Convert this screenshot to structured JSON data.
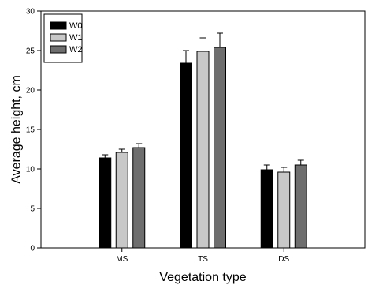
{
  "chart_data": {
    "type": "bar",
    "title": "",
    "xlabel": "Vegetation type",
    "ylabel": "Average height, cm",
    "categories": [
      "MS",
      "TS",
      "DS"
    ],
    "ylim": [
      0,
      30
    ],
    "yticks": [
      0,
      5,
      10,
      15,
      20,
      25,
      30
    ],
    "grid": false,
    "legend_position": "top-left",
    "series": [
      {
        "name": "W0",
        "color": "#000000",
        "values": [
          11.4,
          23.4,
          9.9
        ],
        "errors": [
          0.4,
          1.6,
          0.6
        ]
      },
      {
        "name": "W1",
        "color": "#c8c8c8",
        "values": [
          12.1,
          24.9,
          9.6
        ],
        "errors": [
          0.4,
          1.7,
          0.6
        ]
      },
      {
        "name": "W2",
        "color": "#6e6e6e",
        "values": [
          12.7,
          25.4,
          10.5
        ],
        "errors": [
          0.5,
          1.8,
          0.6
        ]
      }
    ]
  }
}
